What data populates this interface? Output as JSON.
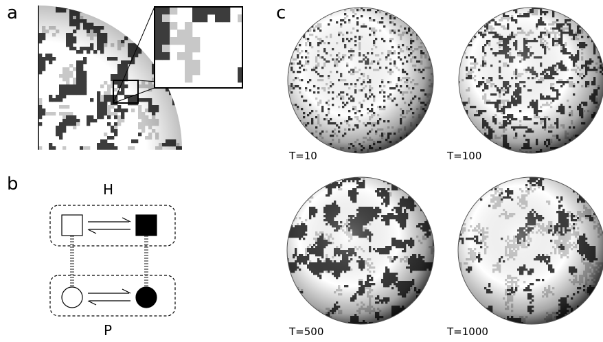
{
  "panels": {
    "a": "a",
    "b": "b",
    "c": "c"
  },
  "schema": {
    "top_label": "H",
    "bottom_label": "P"
  },
  "spheres": [
    {
      "label": "T=10",
      "dark": 0.22,
      "light": 0.28,
      "patch": 1
    },
    {
      "label": "T=100",
      "dark": 0.34,
      "light": 0.26,
      "patch": 2
    },
    {
      "label": "T=500",
      "dark": 0.4,
      "light": 0.24,
      "patch": 4
    },
    {
      "label": "T=1000",
      "dark": 0.3,
      "light": 0.3,
      "patch": 5
    }
  ],
  "colors": {
    "dark": "#3c3c3c",
    "light": "#c8c8c8",
    "white": "#ffffff",
    "mid": "#8c8c8c"
  }
}
